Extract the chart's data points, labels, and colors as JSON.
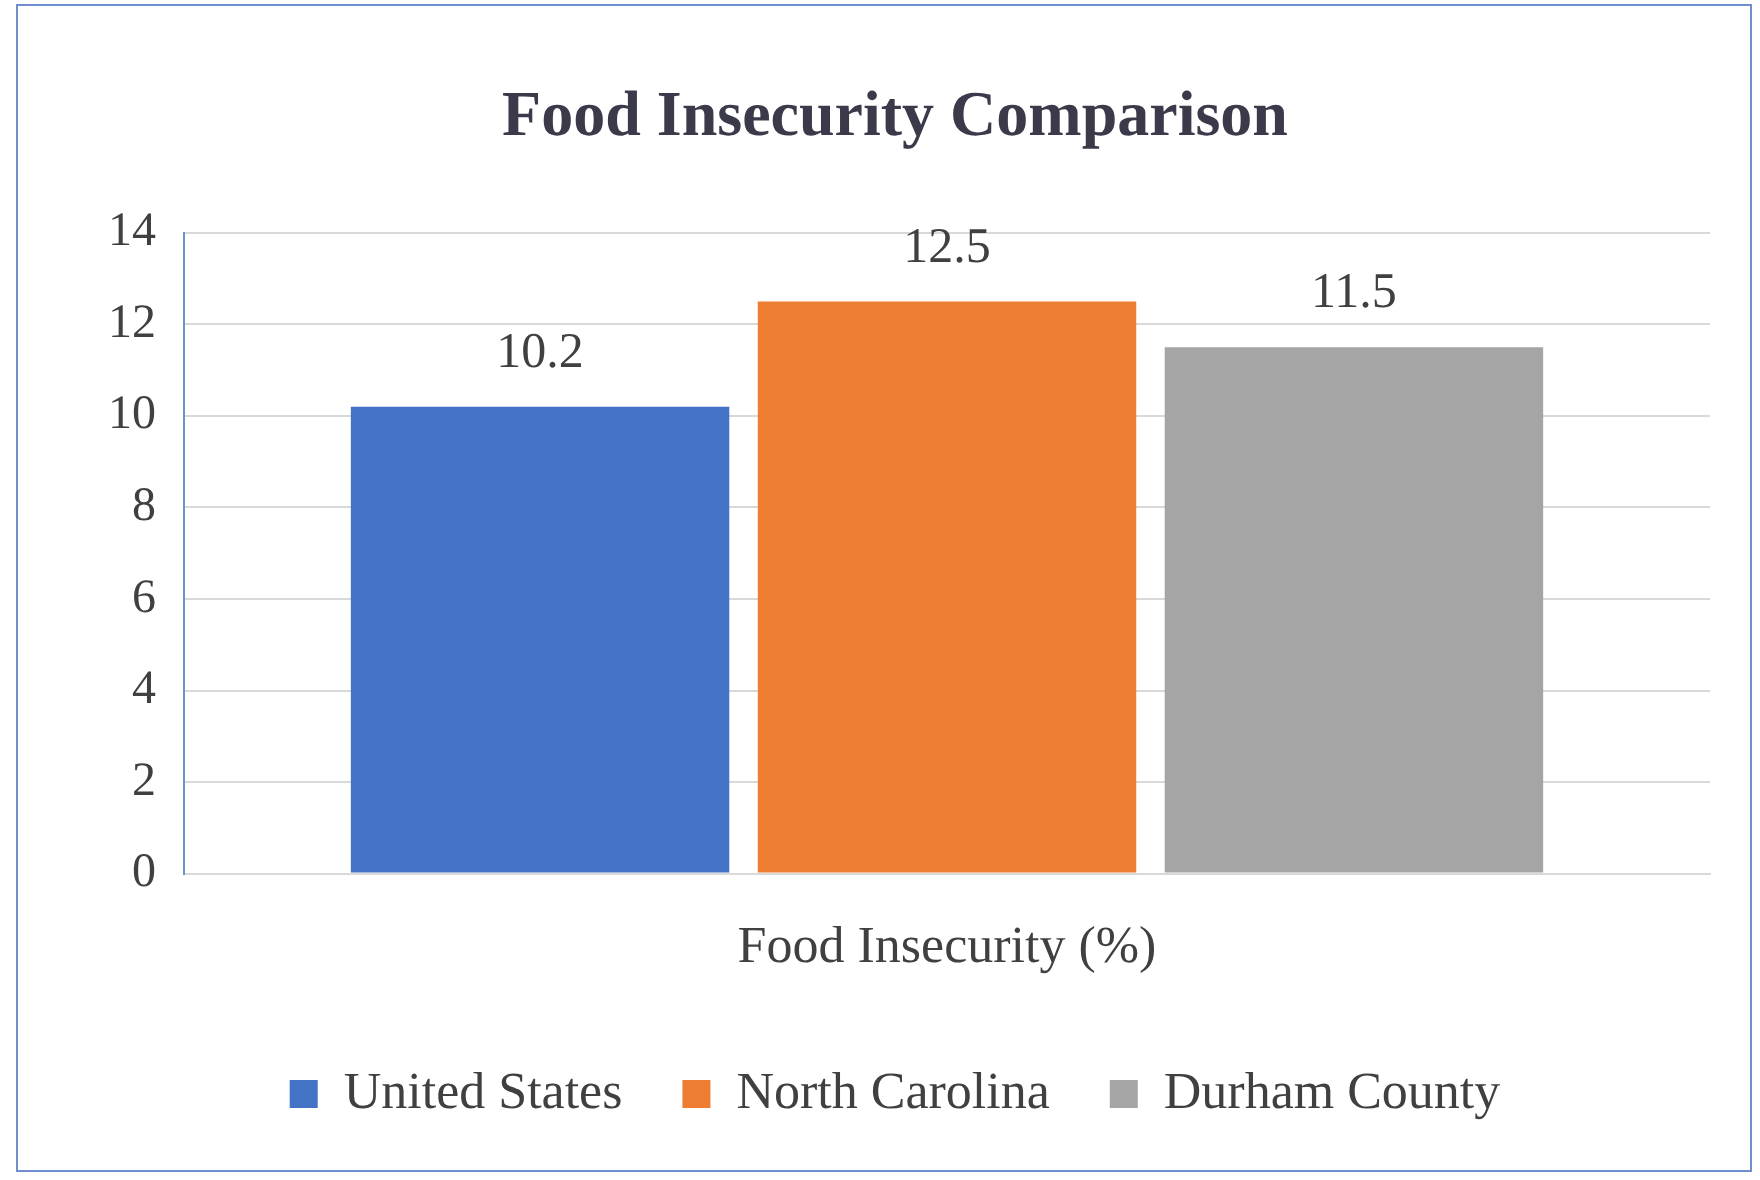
{
  "chart_data": {
    "type": "bar",
    "title": "Food Insecurity Comparison",
    "categories": [
      "Food Insecurity (%)"
    ],
    "series": [
      {
        "name": "United States",
        "color": "#4472c4",
        "values": [
          10.2
        ]
      },
      {
        "name": "North Carolina",
        "color": "#ed7d31",
        "values": [
          12.5
        ]
      },
      {
        "name": "Durham County",
        "color": "#a5a5a5",
        "values": [
          11.5
        ]
      }
    ],
    "ylim": [
      0,
      14
    ],
    "yticks": [
      0,
      2,
      4,
      6,
      8,
      10,
      12,
      14
    ],
    "grid": "y",
    "legend": "bottom",
    "data_labels": true
  }
}
